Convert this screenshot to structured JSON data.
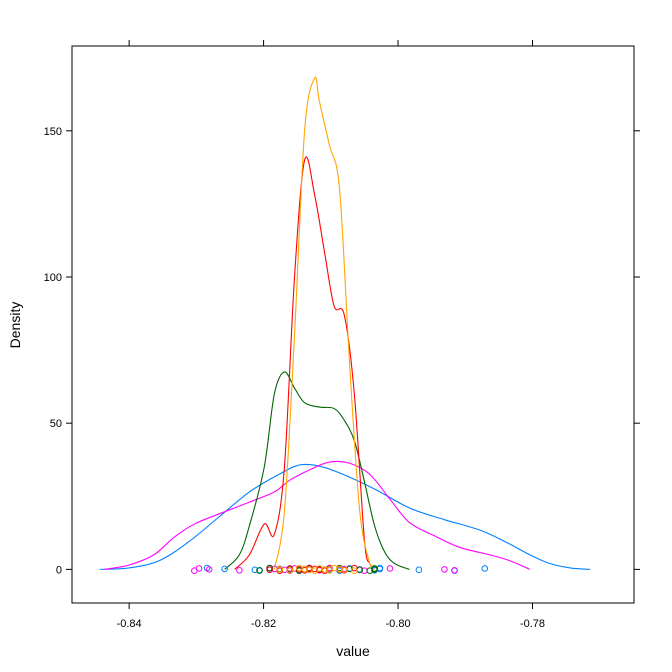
{
  "chart_data": {
    "type": "line",
    "title": "",
    "xlabel": "value",
    "ylabel": "Density",
    "xlim": [
      -0.8485,
      -0.7649
    ],
    "ylim": [
      -11.5,
      179
    ],
    "x_ticks": [
      {
        "value": -0.84,
        "label": "-0.84"
      },
      {
        "value": -0.82,
        "label": "-0.82"
      },
      {
        "value": -0.8,
        "label": "-0.80"
      },
      {
        "value": -0.78,
        "label": "-0.78"
      }
    ],
    "y_ticks": [
      {
        "value": 0,
        "label": "0"
      },
      {
        "value": 50,
        "label": "50"
      },
      {
        "value": 100,
        "label": "100"
      },
      {
        "value": 150,
        "label": "150"
      }
    ],
    "grid": false,
    "legend": "none",
    "series": [
      {
        "color": "#0080ff",
        "points": [
          [
            -0.8444,
            0
          ],
          [
            -0.84,
            0.5
          ],
          [
            -0.8355,
            3
          ],
          [
            -0.8311,
            9.5
          ],
          [
            -0.8266,
            18
          ],
          [
            -0.8221,
            26.5
          ],
          [
            -0.8177,
            32.5
          ],
          [
            -0.8147,
            35.7
          ],
          [
            -0.8117,
            35.3
          ],
          [
            -0.8087,
            33
          ],
          [
            -0.8035,
            27.5
          ],
          [
            -0.7983,
            21
          ],
          [
            -0.7931,
            17
          ],
          [
            -0.7879,
            13.5
          ],
          [
            -0.7841,
            9.5
          ],
          [
            -0.7804,
            5
          ],
          [
            -0.7774,
            2
          ],
          [
            -0.7744,
            0.5
          ],
          [
            -0.7714,
            0
          ]
        ],
        "points_rug": [
          -0.8284,
          -0.8258,
          -0.8213,
          -0.8206,
          -0.8191,
          -0.8161,
          -0.8147,
          -0.8132,
          -0.8117,
          -0.8102,
          -0.8087,
          -0.8072,
          -0.8057,
          -0.8035,
          -0.8027,
          -0.8027,
          -0.7969,
          -0.7916,
          -0.7871
        ]
      },
      {
        "color": "#ff00ff",
        "points": [
          [
            -0.8437,
            0
          ],
          [
            -0.84,
            1.5
          ],
          [
            -0.8363,
            5
          ],
          [
            -0.8333,
            11
          ],
          [
            -0.8303,
            15.5
          ],
          [
            -0.8266,
            19
          ],
          [
            -0.8221,
            23
          ],
          [
            -0.8184,
            26.5
          ],
          [
            -0.8161,
            30.5
          ],
          [
            -0.8132,
            34
          ],
          [
            -0.8102,
            36.7
          ],
          [
            -0.8072,
            36.3
          ],
          [
            -0.8042,
            32.5
          ],
          [
            -0.8012,
            24
          ],
          [
            -0.7983,
            16
          ],
          [
            -0.7946,
            11.5
          ],
          [
            -0.7908,
            7.5
          ],
          [
            -0.7864,
            5
          ],
          [
            -0.7834,
            3
          ],
          [
            -0.7804,
            0
          ]
        ],
        "points_rug": [
          -0.8303,
          -0.8296,
          -0.8281,
          -0.8236,
          -0.8191,
          -0.8184,
          -0.8169,
          -0.8161,
          -0.8154,
          -0.8132,
          -0.8117,
          -0.8102,
          -0.808,
          -0.8057,
          -0.805,
          -0.8012,
          -0.7931,
          -0.7916
        ]
      },
      {
        "color": "#006400",
        "points": [
          [
            -0.8258,
            0
          ],
          [
            -0.8236,
            5
          ],
          [
            -0.8221,
            15
          ],
          [
            -0.8199,
            35
          ],
          [
            -0.8184,
            60
          ],
          [
            -0.8169,
            67.5
          ],
          [
            -0.8154,
            62
          ],
          [
            -0.8139,
            57
          ],
          [
            -0.8117,
            55.5
          ],
          [
            -0.8095,
            55
          ],
          [
            -0.808,
            51
          ],
          [
            -0.8065,
            44
          ],
          [
            -0.805,
            30
          ],
          [
            -0.8035,
            15
          ],
          [
            -0.802,
            6
          ],
          [
            -0.8005,
            2
          ],
          [
            -0.7983,
            0
          ]
        ],
        "points_rug": [
          -0.8206,
          -0.8191,
          -0.8176,
          -0.8161,
          -0.8147,
          -0.8132,
          -0.8117,
          -0.8102,
          -0.8087,
          -0.8072,
          -0.8057,
          -0.8042,
          -0.8035,
          -0.8035
        ]
      },
      {
        "color": "#ff0000",
        "points": [
          [
            -0.8243,
            0
          ],
          [
            -0.8221,
            5
          ],
          [
            -0.8199,
            15.5
          ],
          [
            -0.8184,
            12
          ],
          [
            -0.8169,
            35
          ],
          [
            -0.8154,
            100
          ],
          [
            -0.8139,
            140
          ],
          [
            -0.8124,
            128
          ],
          [
            -0.8109,
            108
          ],
          [
            -0.8095,
            90
          ],
          [
            -0.808,
            87
          ],
          [
            -0.8065,
            60
          ],
          [
            -0.805,
            10
          ],
          [
            -0.8042,
            2
          ],
          [
            -0.8035,
            0
          ]
        ],
        "points_rug": [
          -0.8191,
          -0.8176,
          -0.8161,
          -0.8147,
          -0.8139,
          -0.8132,
          -0.8124,
          -0.8117,
          -0.8109,
          -0.8102,
          -0.8087,
          -0.808,
          -0.8065
        ]
      },
      {
        "color": "#ffa500",
        "points": [
          [
            -0.8184,
            0
          ],
          [
            -0.8169,
            20
          ],
          [
            -0.8154,
            80
          ],
          [
            -0.8139,
            150
          ],
          [
            -0.8124,
            168
          ],
          [
            -0.8117,
            160
          ],
          [
            -0.8102,
            145
          ],
          [
            -0.8087,
            130
          ],
          [
            -0.8072,
            70
          ],
          [
            -0.8057,
            20
          ],
          [
            -0.8042,
            2
          ],
          [
            -0.8035,
            0
          ]
        ],
        "points_rug": [
          -0.8176,
          -0.8161,
          -0.8147,
          -0.8139,
          -0.8132,
          -0.8124,
          -0.8117,
          -0.8109,
          -0.8102,
          -0.8095,
          -0.8087,
          -0.808,
          -0.8065
        ]
      }
    ]
  }
}
